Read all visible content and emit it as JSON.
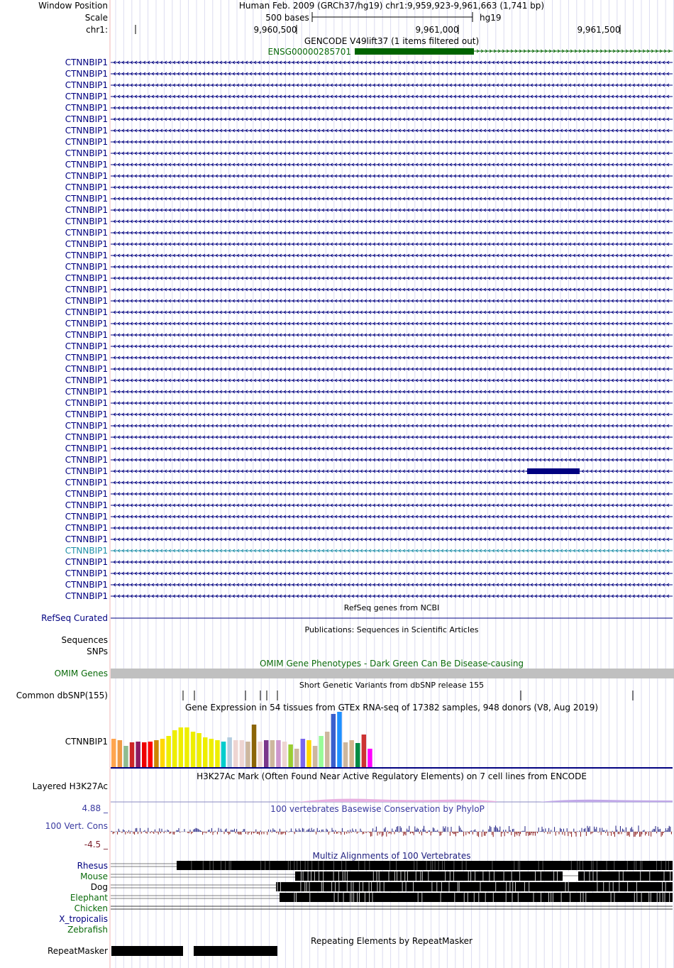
{
  "header": {
    "window_position_label": "Window Position",
    "scale_label": "Scale",
    "chrom_label": "chr1:",
    "assembly_title": "Human Feb. 2009 (GRCh37/hg19)   chr1:9,959,923-9,961,663 (1,741 bp)",
    "scale_text": "500 bases",
    "db": "hg19",
    "ticks": [
      "9,960,500",
      "9,961,000",
      "9,961,500"
    ]
  },
  "gencode": {
    "title": "GENCODE V49lift37 (1 items filtered out)",
    "gene_id": "ENSG00000285701"
  },
  "refseq": {
    "gene_label": "CTNNBIP1",
    "row_count": 48,
    "highlighted_row": 43,
    "thick_block_row": 36,
    "section_label": "RefSeq Curated",
    "title": "RefSeq genes from NCBI"
  },
  "publications": {
    "title": "Publications: Sequences in Scientific Articles",
    "labels": [
      "Sequences",
      "SNPs"
    ]
  },
  "omim": {
    "label": "OMIM Genes",
    "title": "OMIM Gene Phenotypes - Dark Green Can Be Disease-causing"
  },
  "dbsnp": {
    "label": "Common dbSNP(155)",
    "title": "Short Genetic Variants from dbSNP release 155"
  },
  "gtex": {
    "title": "Gene Expression in 54 tissues from GTEx RNA-seq of 17382 samples, 948 donors (V8, Aug 2019)",
    "gene_label": "CTNNBIP1"
  },
  "h3k27ac": {
    "label": "Layered H3K27Ac",
    "title": "H3K27Ac Mark (Often Found Near Active Regulatory Elements) on 7 cell lines from ENCODE"
  },
  "conservation": {
    "max": "4.88 _",
    "label": "100 Vert. Cons",
    "min": "-4.5 _",
    "title": "100 vertebrates Basewise Conservation by PhyloP"
  },
  "multiz": {
    "title": "Multiz Alignments of 100 Vertebrates",
    "species": [
      "Rhesus",
      "Mouse",
      "Dog",
      "Elephant",
      "Chicken",
      "X_tropicalis",
      "Zebrafish"
    ]
  },
  "repeatmasker": {
    "label": "RepeatMasker",
    "title": "Repeating Elements by RepeatMasker"
  },
  "colors": {
    "navy": "#000080",
    "gencode_green": "#006400",
    "omim_gray": "#c0c0c0",
    "highlight_teal": "#1e8fa8"
  }
}
